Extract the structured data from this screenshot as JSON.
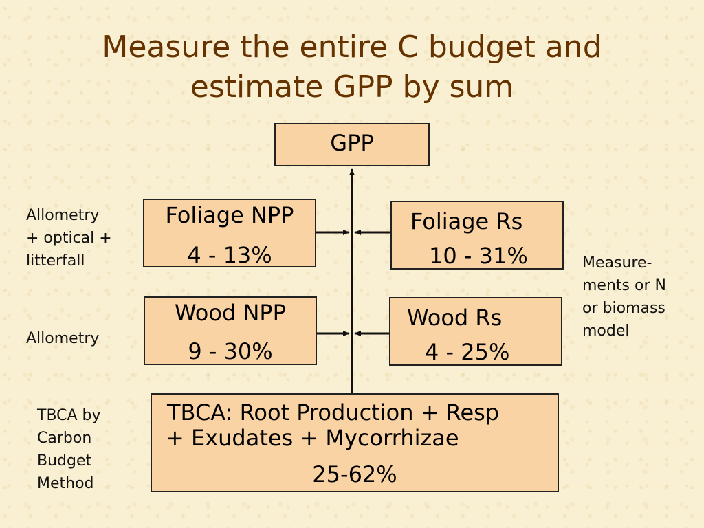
{
  "title": {
    "line1": "Measure the entire C budget and",
    "line2": "estimate GPP by sum"
  },
  "boxes": {
    "gpp": "GPP",
    "foliage_npp": {
      "label": "Foliage NPP",
      "range": "4 - 13%"
    },
    "foliage_rs": {
      "label": "Foliage Rs",
      "range": "10 - 31%"
    },
    "wood_npp": {
      "label": "Wood NPP",
      "range": "9 - 30%"
    },
    "wood_rs": {
      "label": "Wood Rs",
      "range": "4 - 25%"
    },
    "tbca": {
      "line1": "TBCA: Root Production + Resp",
      "line2": "+ Exudates + Mycorrhizae",
      "range": "25-62%"
    }
  },
  "side_notes": {
    "foliage_method": [
      "Allometry",
      "+ optical +",
      "litterfall"
    ],
    "wood_method": [
      "Allometry"
    ],
    "respiration_method": [
      "Measure-",
      "ments or N",
      "or biomass",
      "model"
    ],
    "tbca_method": [
      "TBCA by",
      "Carbon",
      "Budget",
      "Method"
    ]
  },
  "colors": {
    "background": "#f9efd2",
    "box_fill": "#fad3a4",
    "title": "#663300"
  }
}
